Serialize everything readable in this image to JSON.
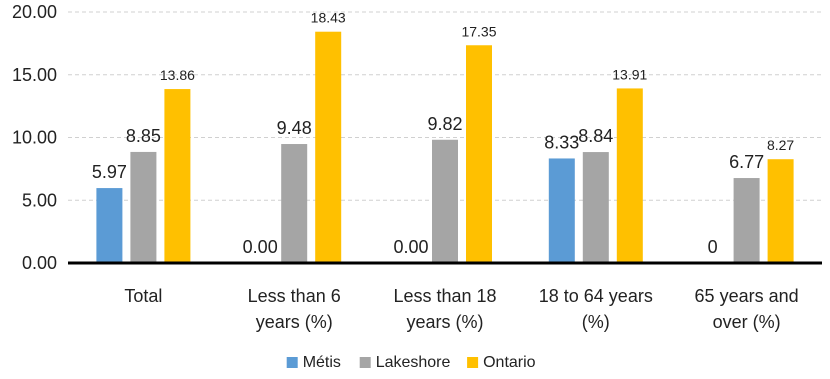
{
  "chart_data": {
    "type": "bar",
    "title": "",
    "xlabel": "",
    "ylabel": "",
    "ylim": [
      0,
      20
    ],
    "yticks": [
      "0.00",
      "5.00",
      "10.00",
      "15.00",
      "20.00"
    ],
    "grid": "horizontal-dashed",
    "legend_position": "bottom-center",
    "categories": [
      [
        "Total"
      ],
      [
        "Less than 6",
        "years (%)"
      ],
      [
        "Less than 18",
        "years (%)"
      ],
      [
        "18 to 64 years",
        "(%)"
      ],
      [
        "65 years and",
        "over (%)"
      ]
    ],
    "series": [
      {
        "name": "Métis",
        "color": "#5B9BD5",
        "values": [
          5.97,
          0.0,
          0.0,
          8.33,
          0
        ],
        "labels": [
          "5.97",
          "0.00",
          "0.00",
          "8.33",
          "0"
        ],
        "label_style": [
          "large",
          "large",
          "large",
          "large",
          "large"
        ]
      },
      {
        "name": "Lakeshore",
        "color": "#A5A5A5",
        "values": [
          8.85,
          9.48,
          9.82,
          8.84,
          6.77
        ],
        "labels": [
          "8.85",
          "9.48",
          "9.82",
          "8.84",
          "6.77"
        ],
        "label_style": [
          "large",
          "large",
          "large",
          "large",
          "large"
        ]
      },
      {
        "name": "Ontario",
        "color": "#FFC000",
        "values": [
          13.86,
          18.43,
          17.35,
          13.91,
          8.27
        ],
        "labels": [
          "13.86",
          "18.43",
          "17.35",
          "13.91",
          "8.27"
        ],
        "label_style": [
          "small",
          "small",
          "small",
          "small",
          "small"
        ]
      }
    ]
  }
}
